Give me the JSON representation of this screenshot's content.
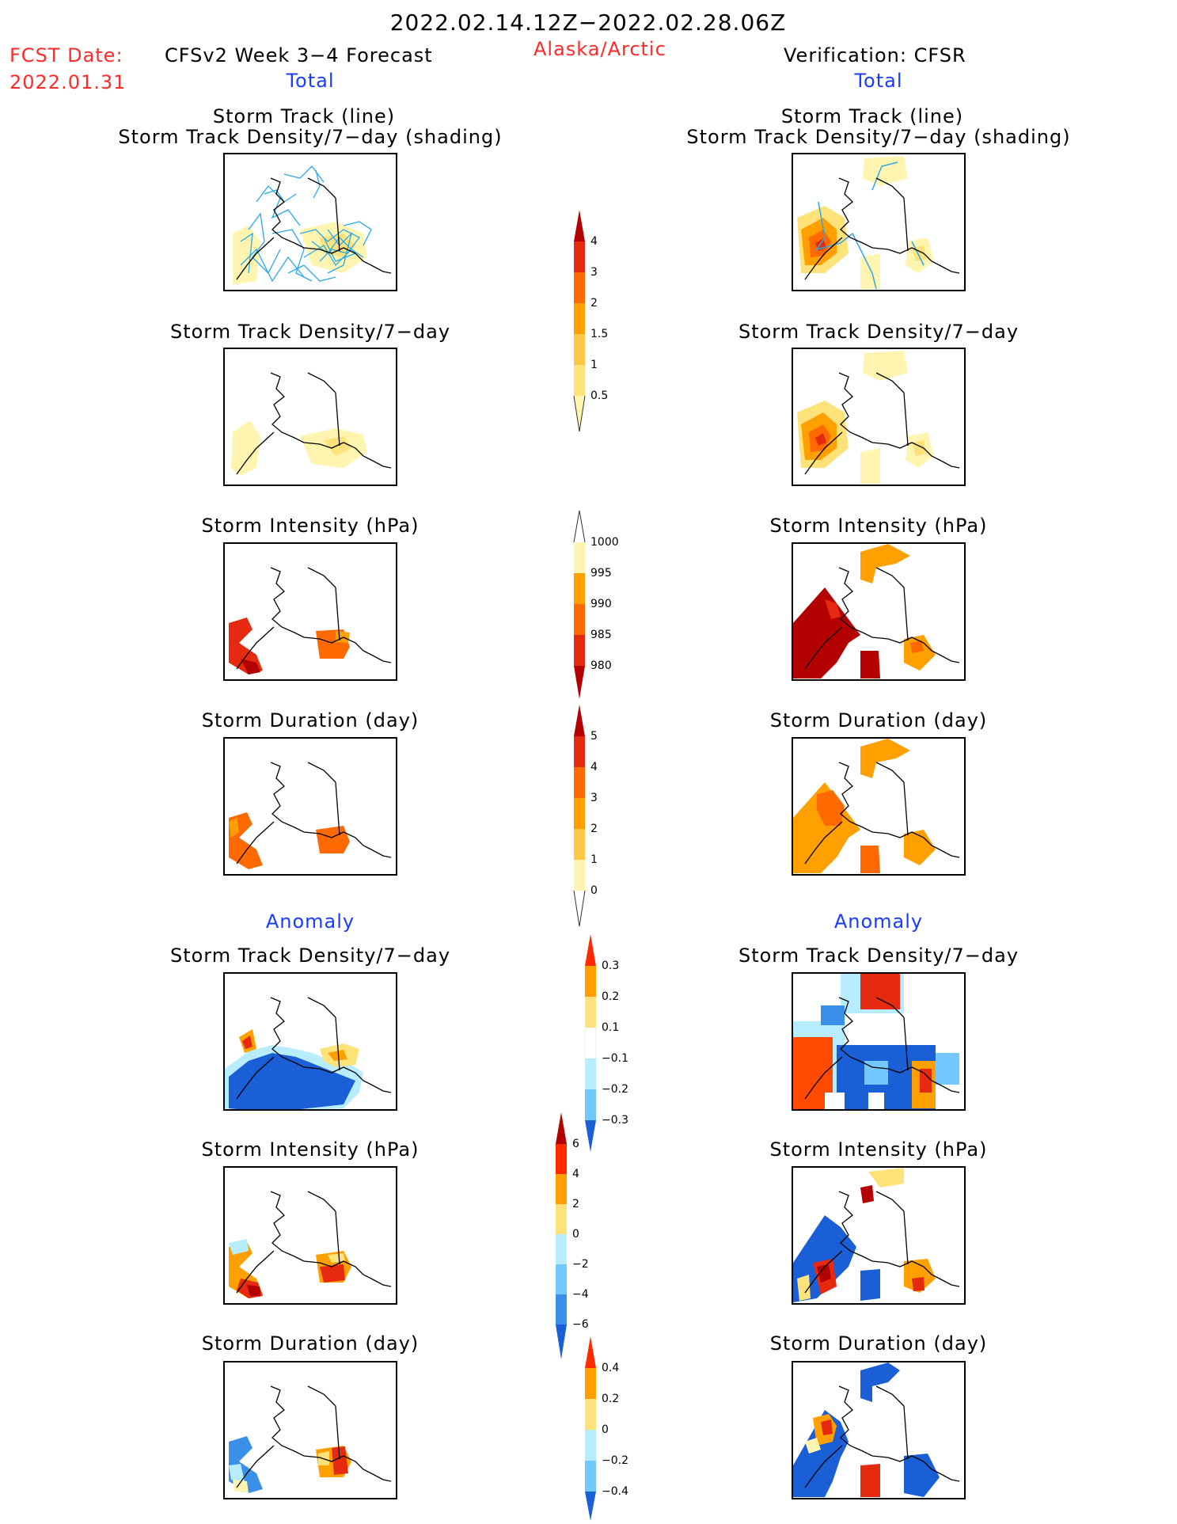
{
  "header": {
    "date_range": "2022.02.14.12Z−2022.02.28.06Z",
    "fcst_label": "FCST Date:",
    "fcst_date": "2022.01.31",
    "model": "CFSv2 Week 3−4 Forecast",
    "region": "Alaska/Arctic",
    "verification": "Verification: CFSR"
  },
  "sections": {
    "total": "Total",
    "anomaly": "Anomaly"
  },
  "panel_titles": {
    "track_line": "Storm Track (line)",
    "track_density_shading": "Storm Track Density/7−day (shading)",
    "track_density": "Storm Track Density/7−day",
    "intensity": "Storm Intensity (hPa)",
    "duration": "Storm Duration (day)"
  },
  "colors": {
    "yellow_light": "#fff5b0",
    "yellow": "#ffe27a",
    "gold": "#ffc844",
    "orange": "#ffa000",
    "orange_red": "#ff6a00",
    "red": "#e62a10",
    "dark_red": "#b30000",
    "track_blue": "#2aa8e8",
    "light_blue": "#b8ecff",
    "sky_blue": "#73c8ff",
    "mid_blue": "#3a8fe8",
    "dark_blue": "#1a5fd6",
    "coast": "#000000"
  },
  "colorbars": [
    {
      "name": "density-colorbar",
      "labels": [
        "4",
        "3",
        "2",
        "1.5",
        "1",
        "0.5"
      ]
    },
    {
      "name": "intensity-colorbar",
      "labels": [
        "1000",
        "995",
        "990",
        "985",
        "980"
      ]
    },
    {
      "name": "duration-colorbar",
      "labels": [
        "5",
        "4",
        "3",
        "2",
        "1",
        "0"
      ]
    },
    {
      "name": "density-anomaly-colorbar",
      "labels": [
        "0.3",
        "0.2",
        "0.1",
        "−0.1",
        "−0.2",
        "−0.3"
      ]
    },
    {
      "name": "intensity-anomaly-colorbar",
      "labels": [
        "6",
        "4",
        "2",
        "0",
        "−2",
        "−4",
        "−6"
      ]
    },
    {
      "name": "duration-anomaly-colorbar",
      "labels": [
        "0.4",
        "0.2",
        "0",
        "−0.2",
        "−0.4"
      ]
    }
  ]
}
